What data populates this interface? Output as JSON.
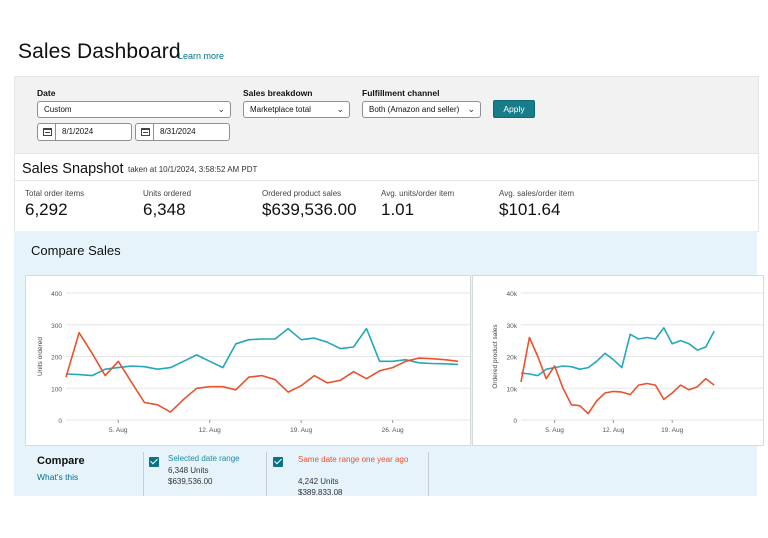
{
  "page": {
    "title": "Sales Dashboard",
    "learn_more": "Learn more"
  },
  "filters": {
    "date_label": "Date",
    "date_range_value": "Custom",
    "start_date": "8/1/2024",
    "end_date": "8/31/2024",
    "sales_breakdown_label": "Sales breakdown",
    "sales_breakdown_value": "Marketplace total",
    "fulfillment_label": "Fulfillment channel",
    "fulfillment_value": "Both (Amazon and seller)",
    "apply_label": "Apply"
  },
  "snapshot": {
    "title": "Sales Snapshot",
    "taken_at": "taken at 10/1/2024, 3:58:52 AM PDT",
    "metrics": [
      {
        "label": "Total order items",
        "value": "6,292"
      },
      {
        "label": "Units ordered",
        "value": "6,348"
      },
      {
        "label": "Ordered product sales",
        "value": "$639,536.00"
      },
      {
        "label": "Avg. units/order item",
        "value": "1.01"
      },
      {
        "label": "Avg. sales/order item",
        "value": "$101.64"
      }
    ]
  },
  "compare": {
    "title": "Compare Sales",
    "legend_title": "Compare",
    "whats_this": "What's this",
    "selected": {
      "label": "Selected date range",
      "units": "6,348 Units",
      "sales": "$639,536.00",
      "color": "#23a8b9"
    },
    "previous": {
      "label": "Same date range one year ago",
      "units": "4,242 Units",
      "sales": "$389,833.08",
      "color": "#e8522e"
    }
  },
  "colors": {
    "accent": "#177e89",
    "link": "#007185",
    "selected_series": "#23a8b9",
    "previous_series": "#e8522e"
  },
  "icons": {
    "date_picker": "calendar-icon",
    "dropdown": "chevron-down-icon",
    "checkbox": "checkbox-checked-icon"
  },
  "chart_data": [
    {
      "type": "line",
      "ylabel": "Units ordered",
      "ylim": [
        0,
        400
      ],
      "yticks": [
        "0",
        "100",
        "200",
        "300",
        "400"
      ],
      "xticks": [
        "5. Aug",
        "12. Aug",
        "19. Aug",
        "26. Aug"
      ],
      "x": [
        1,
        2,
        3,
        4,
        5,
        6,
        7,
        8,
        9,
        10,
        11,
        12,
        13,
        14,
        15,
        16,
        17,
        18,
        19,
        20,
        21,
        22,
        23,
        24,
        25,
        26,
        27,
        28,
        29,
        30,
        31
      ],
      "series": [
        {
          "name": "Selected date range",
          "values": [
            145,
            143,
            140,
            160,
            165,
            170,
            168,
            160,
            165,
            185,
            205,
            185,
            165,
            240,
            253,
            255,
            255,
            288,
            253,
            258,
            245,
            225,
            230,
            288,
            185,
            185,
            190,
            180,
            178,
            177,
            175
          ]
        },
        {
          "name": "Same date range one year ago",
          "values": [
            135,
            275,
            210,
            140,
            185,
            120,
            55,
            48,
            25,
            65,
            100,
            105,
            105,
            95,
            135,
            140,
            127,
            88,
            108,
            140,
            117,
            125,
            152,
            130,
            155,
            165,
            185,
            195,
            193,
            190,
            185
          ]
        }
      ]
    },
    {
      "type": "line",
      "ylabel": "Ordered product sales",
      "ylim": [
        0,
        40000
      ],
      "yticks": [
        "0",
        "10k",
        "20k",
        "30k",
        "40k"
      ],
      "xticks": [
        "5. Aug",
        "12. Aug",
        "19. Aug"
      ],
      "x": [
        1,
        2,
        3,
        4,
        5,
        6,
        7,
        8,
        9,
        10,
        11,
        12,
        13,
        14,
        15,
        16,
        17,
        18,
        19,
        20,
        21,
        22,
        23,
        24
      ],
      "series": [
        {
          "name": "Selected date range",
          "values": [
            14800,
            14500,
            14000,
            16000,
            16500,
            17000,
            16800,
            16000,
            16500,
            18500,
            21000,
            19000,
            16500,
            27000,
            25500,
            26000,
            25500,
            29000,
            24000,
            25000,
            24000,
            22000,
            23000,
            28000
          ]
        },
        {
          "name": "Same date range one year ago",
          "values": [
            12000,
            26000,
            20000,
            13000,
            17000,
            10000,
            4800,
            4500,
            2000,
            6000,
            8500,
            9000,
            8800,
            8000,
            11000,
            11500,
            11000,
            6500,
            8500,
            11000,
            9500,
            10500,
            13000,
            11000
          ]
        }
      ]
    }
  ]
}
